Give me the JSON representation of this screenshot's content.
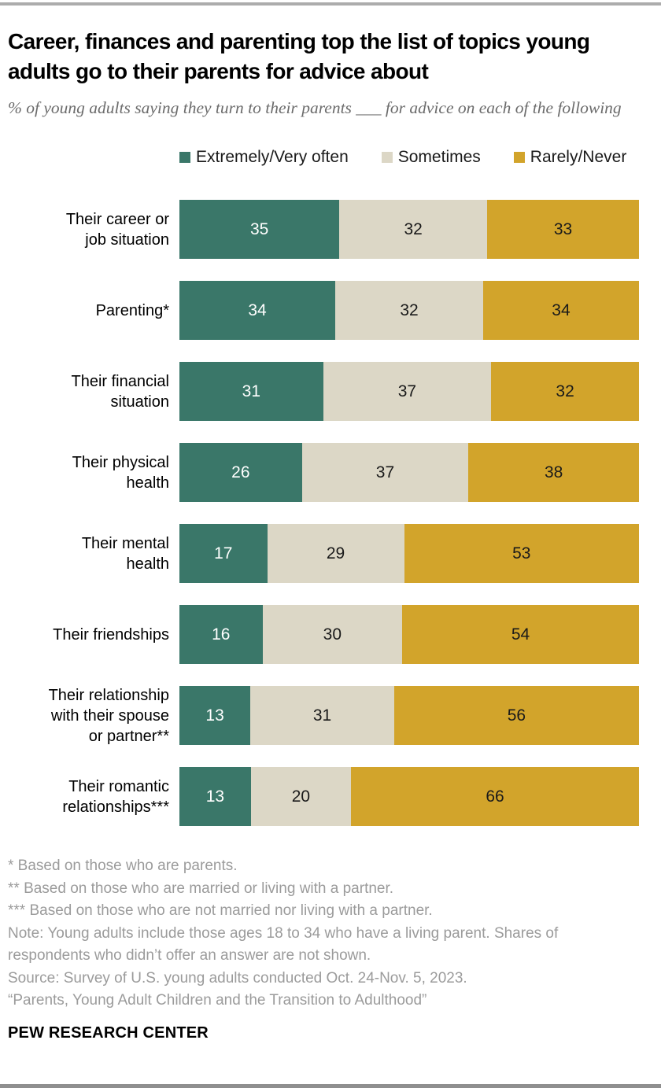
{
  "header": {
    "title": "Career, finances and parenting top the list of topics young adults go to their parents for advice about",
    "subtitle": "% of young adults saying they turn to their parents ___ for advice on each of the following"
  },
  "colors": {
    "teal": "#3a7769",
    "beige": "#dcd7c6",
    "gold": "#d2a42b",
    "rule_top": "#acacac",
    "rule_bottom": "#8f8f8f",
    "note_gray": "#9b9b9b"
  },
  "chart_data": {
    "type": "bar",
    "stacked": true,
    "orientation": "horizontal",
    "xlim": [
      0,
      100
    ],
    "legend_position": "top",
    "value_labels": "inside-center",
    "grid": false,
    "categories": [
      "Their career or\njob situation",
      "Parenting*",
      "Their financial\nsituation",
      "Their physical\nhealth",
      "Their mental\nhealth",
      "Their friendships",
      "Their relationship\nwith their spouse\nor partner**",
      "Their romantic\nrelationships***"
    ],
    "series": [
      {
        "name": "Extremely/Very often",
        "color": "#3a7769",
        "text_color": "#ffffff",
        "values": [
          35,
          34,
          31,
          26,
          17,
          16,
          13,
          13
        ]
      },
      {
        "name": "Sometimes",
        "color": "#dcd7c6",
        "text_color": "#1a1a1a",
        "values": [
          32,
          32,
          37,
          37,
          29,
          30,
          31,
          20
        ]
      },
      {
        "name": "Rarely/Never",
        "color": "#d2a42b",
        "text_color": "#1a1a1a",
        "values": [
          33,
          34,
          32,
          38,
          53,
          54,
          56,
          66
        ]
      }
    ]
  },
  "footnotes": [
    "* Based on those who are parents.",
    "** Based on those who are married or living with a partner.",
    "*** Based on those who are not married nor living with a partner.",
    "Note: Young adults include those ages 18 to 34 who have a living parent. Shares of respondents who didn’t offer an answer are not shown.",
    "Source: Survey of U.S. young adults conducted Oct. 24-Nov. 5, 2023.",
    "“Parents, Young Adult Children and the Transition to Adulthood”"
  ],
  "branding": "PEW RESEARCH CENTER"
}
